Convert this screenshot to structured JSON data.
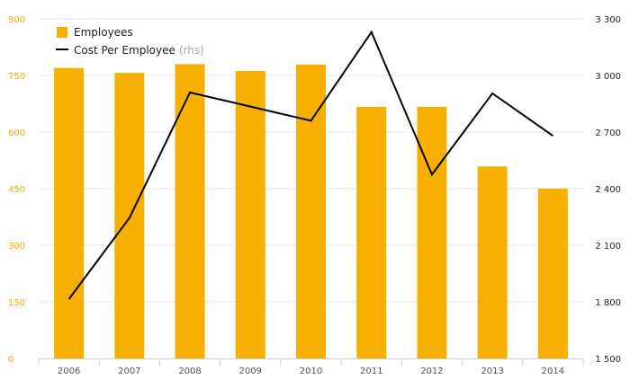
{
  "chart_data": {
    "type": "bar+line",
    "categories": [
      "2006",
      "2007",
      "2008",
      "2009",
      "2010",
      "2011",
      "2012",
      "2013",
      "2014"
    ],
    "series": [
      {
        "name": "Employees",
        "type": "bar",
        "axis": "left",
        "values": [
          770,
          757,
          780,
          762,
          779,
          667,
          667,
          509,
          450
        ]
      },
      {
        "name": "Cost Per Employee",
        "name_suffix": "(rhs)",
        "type": "line",
        "axis": "right",
        "values": [
          1815,
          2245,
          2910,
          2835,
          2760,
          3230,
          2475,
          2905,
          2680
        ]
      }
    ],
    "left_axis": {
      "ylim": [
        0,
        900
      ],
      "ticks": [
        "0",
        "150",
        "300",
        "450",
        "600",
        "750",
        "900"
      ]
    },
    "right_axis": {
      "ylim": [
        1500,
        3300
      ],
      "ticks": [
        "1 500",
        "1 800",
        "2 100",
        "2 400",
        "2 700",
        "3 000",
        "3 300"
      ]
    },
    "grid": true,
    "legend_position": "top-left",
    "colors": {
      "bar": "#f8b000",
      "line": "#000000",
      "left_tick": "#f5a800",
      "right_tick": "#222222",
      "grid": "#e6e6e6",
      "axis": "#c8d0dc"
    }
  }
}
